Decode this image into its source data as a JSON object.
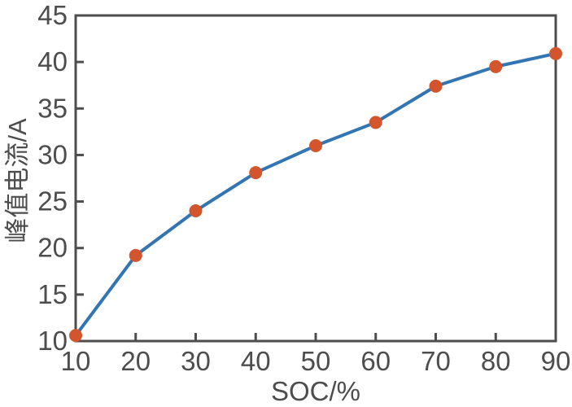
{
  "chart_data": {
    "type": "line",
    "x": [
      10,
      20,
      30,
      40,
      50,
      60,
      70,
      80,
      90
    ],
    "y": [
      10.6,
      19.2,
      24.0,
      28.1,
      31.0,
      33.5,
      37.4,
      39.5,
      40.9
    ],
    "title": "",
    "xlabel": "SOC/%",
    "ylabel": "峰值电流/A",
    "xlim": [
      10,
      90
    ],
    "ylim": [
      10,
      45
    ],
    "x_tick_labels": [
      "10",
      "20",
      "30",
      "40",
      "50",
      "60",
      "70",
      "80",
      "90"
    ],
    "y_tick_labels": [
      "10",
      "15",
      "20",
      "25",
      "30",
      "35",
      "40",
      "45"
    ],
    "grid": false,
    "legend_position": "none",
    "marker": "circle",
    "colors": {
      "line": "#3275b2",
      "marker": "#d2552d",
      "axis": "#4d4d4d",
      "text": "#4d4d4d",
      "background": "#ffffff"
    }
  }
}
